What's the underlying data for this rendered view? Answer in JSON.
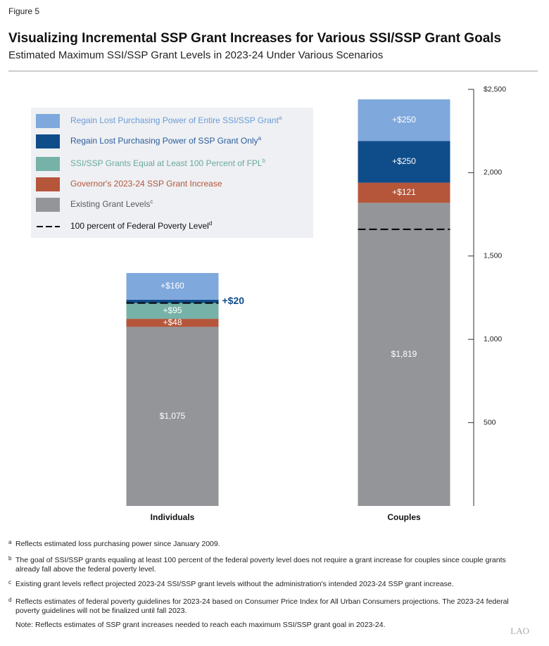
{
  "figure_label": "Figure 5",
  "chart_data": {
    "type": "stacked-bar",
    "title": "Visualizing Incremental SSP Grant Increases for Various SSI/SSP Grant Goals",
    "subtitle": "Estimated Maximum SSI/SSP Grant Levels in 2023-24 Under Various Scenarios",
    "categories": [
      "Individuals",
      "Couples"
    ],
    "series": [
      {
        "name": "Existing Grant Levels",
        "footnote": "c",
        "color": "#939598",
        "text_color": "#58595b",
        "values": [
          1075,
          1819
        ],
        "value_labels": [
          "$1,075",
          "$1,819"
        ]
      },
      {
        "name": "Governor's 2023-24 SSP Grant Increase",
        "color": "#b5563a",
        "text_color": "#b5563a",
        "values": [
          48,
          121
        ],
        "value_labels": [
          "+$48",
          "+$121"
        ]
      },
      {
        "name": "SSI/SSP Grants Equal at Least 100 Percent of FPL",
        "footnote": "b",
        "color": "#77b2a8",
        "text_color": "#6aa99e",
        "values": [
          95,
          null
        ],
        "value_labels": [
          "+$95",
          null
        ]
      },
      {
        "name": "Regain Lost Purchasing Power of SSP Grant Only",
        "footnote": "a",
        "color": "#0f4c8a",
        "text_color": "#2a5c9c",
        "values": [
          20,
          250
        ],
        "value_labels": [
          "+$20",
          "+$250"
        ]
      },
      {
        "name": "Regain Lost Purchasing Power of Entire SSI/SSP Grant",
        "footnote": "a",
        "color": "#7fa8dc",
        "text_color": "#6b9bd6",
        "values": [
          160,
          250
        ],
        "value_labels": [
          "+$160",
          "+$250"
        ]
      }
    ],
    "reference_line": {
      "name": "100 percent of Federal Poverty Level",
      "footnote": "d",
      "color": "#000000",
      "values": [
        1218,
        1660
      ]
    },
    "ylim": [
      0,
      2500
    ],
    "yticks": [
      {
        "value": 2500,
        "label": "$2,500"
      },
      {
        "value": 2000,
        "label": "2,000"
      },
      {
        "value": 1500,
        "label": "1,500"
      },
      {
        "value": 1000,
        "label": "1,000"
      },
      500
    ],
    "y_axis_side": "right"
  },
  "footnotes": [
    {
      "mark": "a",
      "text": "Reflects estimated loss purchasing power since January 2009."
    },
    {
      "mark": "b",
      "text": "The goal of SSI/SSP grants equaling at least 100 percent of the federal poverty level does not require a grant increase for couples since couple grants already fall above the federal poverty level."
    },
    {
      "mark": "c",
      "text": "Existing grant levels reflect projected 2023-24 SSI/SSP grant levels without the administration's intended 2023-24 SSP grant increase."
    },
    {
      "mark": "d",
      "text": "Reflects estimates of federal poverty guidelines for 2023-24 based on Consumer Price Index for All Urban Consumers projections. The 2023-24 federal poverty guidelines will not be finalized until fall 2023."
    }
  ],
  "note": "Note: Reflects estimates of SSP grant increases needed to reach each maximum SSI/SSP grant goal in 2023-24.",
  "logo": "LAO"
}
